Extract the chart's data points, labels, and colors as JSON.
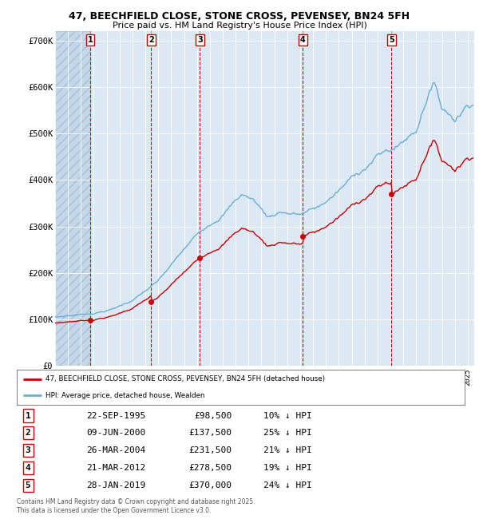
{
  "title_line1": "47, BEECHFIELD CLOSE, STONE CROSS, PEVENSEY, BN24 5FH",
  "title_line2": "Price paid vs. HM Land Registry's House Price Index (HPI)",
  "background_color": "#dce9f5",
  "plot_bg_color": "#dce9f5",
  "grid_color": "#ffffff",
  "red_line_color": "#cc0000",
  "blue_line_color": "#6aaed6",
  "purchase_marker_color": "#cc0000",
  "vline_color_purchase": "#cc0000",
  "transactions": [
    {
      "num": 1,
      "date_float": 1995.73,
      "price": 98500,
      "label": "22-SEP-1995",
      "pct": "10%"
    },
    {
      "num": 2,
      "date_float": 2000.44,
      "price": 137500,
      "label": "09-JUN-2000",
      "pct": "25%"
    },
    {
      "num": 3,
      "date_float": 2004.23,
      "price": 231500,
      "label": "26-MAR-2004",
      "pct": "21%"
    },
    {
      "num": 4,
      "date_float": 2012.22,
      "price": 278500,
      "label": "21-MAR-2012",
      "pct": "19%"
    },
    {
      "num": 5,
      "date_float": 2019.08,
      "price": 370000,
      "label": "28-JAN-2019",
      "pct": "24%"
    }
  ],
  "ylim": [
    0,
    720000
  ],
  "xlim_start": 1993.0,
  "xlim_end": 2025.5,
  "yticks": [
    0,
    100000,
    200000,
    300000,
    400000,
    500000,
    600000,
    700000
  ],
  "ytick_labels": [
    "£0",
    "£100K",
    "£200K",
    "£300K",
    "£400K",
    "£500K",
    "£600K",
    "£700K"
  ],
  "legend_label_red": "47, BEECHFIELD CLOSE, STONE CROSS, PEVENSEY, BN24 5FH (detached house)",
  "legend_label_blue": "HPI: Average price, detached house, Wealden",
  "footnote": "Contains HM Land Registry data © Crown copyright and database right 2025.\nThis data is licensed under the Open Government Licence v3.0.",
  "table_rows": [
    [
      "1",
      "22-SEP-1995",
      "£98,500",
      "10% ↓ HPI"
    ],
    [
      "2",
      "09-JUN-2000",
      "£137,500",
      "25% ↓ HPI"
    ],
    [
      "3",
      "26-MAR-2004",
      "£231,500",
      "21% ↓ HPI"
    ],
    [
      "4",
      "21-MAR-2012",
      "£278,500",
      "19% ↓ HPI"
    ],
    [
      "5",
      "28-JAN-2019",
      "£370,000",
      "24% ↓ HPI"
    ]
  ]
}
